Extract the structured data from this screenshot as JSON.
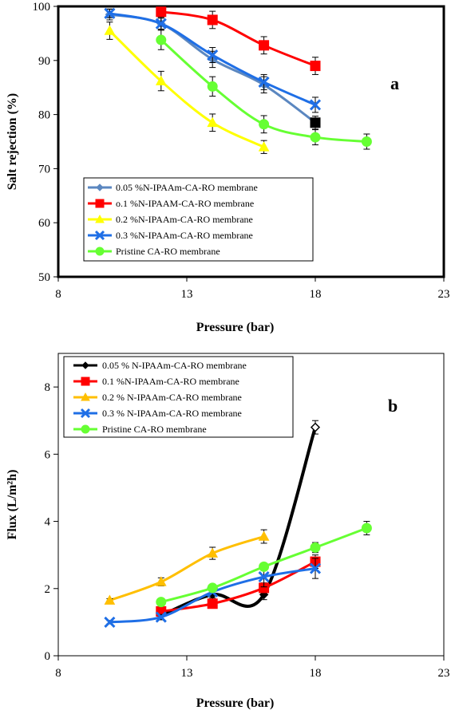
{
  "chart_data": [
    {
      "type": "line",
      "panel_label": "a",
      "xlabel": "Pressure (bar)",
      "ylabel": "Salt rejection (%)",
      "xlim": [
        8,
        23
      ],
      "ylim": [
        50,
        100
      ],
      "xticks": [
        "8",
        "13",
        "18",
        "23"
      ],
      "yticks": [
        "50",
        "60",
        "70",
        "80",
        "90",
        "100"
      ],
      "legend_position": "bottom-left",
      "series": [
        {
          "name": "0.05 %N-IPAAm-CA-RO membrane",
          "color": "#5b87c0",
          "marker": "diamond",
          "x": [
            10,
            12,
            14,
            16,
            18
          ],
          "y": [
            98.5,
            96.8,
            90.2,
            85.5,
            78.5
          ],
          "err": [
            1.0,
            1.2,
            1.5,
            1.5,
            1.2
          ]
        },
        {
          "name": "o.1 %N-IPAAM-CA-RO membrane",
          "color": "#ff0000",
          "marker": "square",
          "x": [
            12,
            14,
            16,
            18
          ],
          "y": [
            99.0,
            97.5,
            92.8,
            89.0
          ],
          "err": [
            1.0,
            1.6,
            1.6,
            1.6
          ]
        },
        {
          "name": "0.2 %N-IPAAm-CA-RO membrane",
          "color": "#ffff00",
          "marker": "triangle",
          "x": [
            10,
            12,
            14,
            16
          ],
          "y": [
            95.5,
            86.2,
            78.5,
            74.0
          ],
          "err": [
            1.6,
            1.8,
            1.6,
            1.2
          ]
        },
        {
          "name": "0.3 %N-IPAAm-CA-RO membrane",
          "color": "#1f6fe6",
          "marker": "x",
          "x": [
            10,
            12,
            14,
            16,
            18
          ],
          "y": [
            98.7,
            96.8,
            91.0,
            86.0,
            81.8
          ],
          "err": [
            0.8,
            1.0,
            1.4,
            1.4,
            1.4
          ]
        },
        {
          "name": "Pristine CA-RO membrane",
          "color": "#66ff33",
          "marker": "circle",
          "x": [
            12,
            14,
            16,
            18,
            20
          ],
          "y": [
            93.8,
            85.2,
            78.2,
            75.8,
            75.0
          ],
          "err": [
            1.8,
            1.8,
            1.6,
            1.4,
            1.4
          ]
        }
      ]
    },
    {
      "type": "line",
      "panel_label": "b",
      "xlabel": "Pressure (bar)",
      "ylabel": "Flux (L/m²h)",
      "xlim": [
        8,
        23
      ],
      "ylim": [
        0,
        9
      ],
      "xticks": [
        "8",
        "13",
        "18",
        "23"
      ],
      "yticks": [
        "0",
        "2",
        "4",
        "6",
        "8"
      ],
      "legend_position": "top-left",
      "series": [
        {
          "name": "0.05 % N-IPAAm-CA-RO membrane",
          "color": "#000000",
          "marker": "diamond",
          "x": [
            12,
            14,
            16,
            18
          ],
          "y": [
            1.2,
            1.82,
            1.82,
            6.8
          ],
          "err": [
            0.1,
            0.1,
            0.15,
            0.2
          ]
        },
        {
          "name": "0.1 %N-IPAAm-CA-RO membrane",
          "color": "#ff0000",
          "marker": "square",
          "x": [
            12,
            14,
            16,
            18
          ],
          "y": [
            1.32,
            1.55,
            2.02,
            2.8
          ],
          "err": [
            0.1,
            0.1,
            0.15,
            0.2
          ]
        },
        {
          "name": "0.2 % N-IPAAm-CA-RO membrane",
          "color": "#ffbf00",
          "marker": "triangle",
          "x": [
            10,
            12,
            14,
            16
          ],
          "y": [
            1.65,
            2.2,
            3.05,
            3.55
          ],
          "err": [
            0.05,
            0.12,
            0.18,
            0.2
          ]
        },
        {
          "name": "0.3 % N-IPAAm-CA-RO membrane",
          "color": "#1f6fe6",
          "marker": "x",
          "x": [
            10,
            12,
            14,
            16,
            18
          ],
          "y": [
            1.0,
            1.15,
            1.9,
            2.35,
            2.6
          ],
          "err": [
            0.05,
            0.08,
            0.1,
            0.3,
            0.3
          ]
        },
        {
          "name": "Pristine CA-RO membrane",
          "color": "#66ff33",
          "marker": "circle",
          "x": [
            12,
            14,
            16,
            18,
            20
          ],
          "y": [
            1.6,
            2.02,
            2.65,
            3.22,
            3.8
          ],
          "err": [
            0.05,
            0.1,
            0.1,
            0.15,
            0.2
          ]
        }
      ]
    }
  ]
}
